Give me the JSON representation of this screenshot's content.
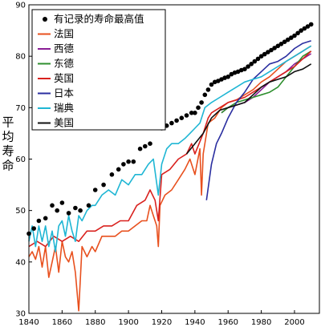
{
  "chart_data": {
    "type": "line",
    "title": "",
    "xlabel": "",
    "ylabel": "平均寿命",
    "xlim": [
      1840,
      2015
    ],
    "ylim": [
      30,
      90
    ],
    "xticks": [
      1840,
      1860,
      1880,
      1900,
      1920,
      1940,
      1960,
      1980,
      2000
    ],
    "yticks": [
      30,
      40,
      50,
      60,
      70,
      80,
      90
    ],
    "grid": false,
    "legend_position": "top-left",
    "record": {
      "name": "有记录的寿命最高值",
      "color": "#000000",
      "points": [
        [
          1840,
          45.5
        ],
        [
          1843,
          46.5
        ],
        [
          1846,
          48
        ],
        [
          1850,
          48.5
        ],
        [
          1854,
          51
        ],
        [
          1857,
          50
        ],
        [
          1860,
          51.5
        ],
        [
          1864,
          49.5
        ],
        [
          1868,
          50.5
        ],
        [
          1871,
          50
        ],
        [
          1876,
          51
        ],
        [
          1880,
          54
        ],
        [
          1885,
          55
        ],
        [
          1890,
          57
        ],
        [
          1894,
          58
        ],
        [
          1897,
          59
        ],
        [
          1900,
          59.5
        ],
        [
          1903,
          59.5
        ],
        [
          1907,
          62
        ],
        [
          1910,
          62.5
        ],
        [
          1913,
          63
        ],
        [
          1920,
          66
        ],
        [
          1923,
          66.5
        ],
        [
          1926,
          67
        ],
        [
          1929,
          67.5
        ],
        [
          1932,
          68
        ],
        [
          1935,
          68.5
        ],
        [
          1938,
          69
        ],
        [
          1940,
          69
        ],
        [
          1942,
          70
        ],
        [
          1944,
          71
        ],
        [
          1946,
          72.5
        ],
        [
          1948,
          73.5
        ],
        [
          1950,
          74.5
        ],
        [
          1952,
          75
        ],
        [
          1954,
          75.2
        ],
        [
          1956,
          75.5
        ],
        [
          1958,
          75.8
        ],
        [
          1960,
          76
        ],
        [
          1962,
          76.5
        ],
        [
          1964,
          76.8
        ],
        [
          1966,
          77
        ],
        [
          1968,
          77.3
        ],
        [
          1970,
          77.5
        ],
        [
          1972,
          78
        ],
        [
          1974,
          78.5
        ],
        [
          1976,
          79
        ],
        [
          1978,
          79.5
        ],
        [
          1980,
          80
        ],
        [
          1982,
          80.4
        ],
        [
          1984,
          80.8
        ],
        [
          1986,
          81.2
        ],
        [
          1988,
          81.6
        ],
        [
          1990,
          82
        ],
        [
          1992,
          82.4
        ],
        [
          1994,
          82.8
        ],
        [
          1996,
          83.2
        ],
        [
          1998,
          83.6
        ],
        [
          2000,
          84
        ],
        [
          2002,
          84.5
        ],
        [
          2004,
          85
        ],
        [
          2006,
          85.4
        ],
        [
          2008,
          85.8
        ],
        [
          2010,
          86.2
        ]
      ]
    },
    "series": [
      {
        "name": "法国",
        "color": "#e8501e",
        "points": [
          [
            1840,
            41
          ],
          [
            1842,
            42
          ],
          [
            1844,
            40.5
          ],
          [
            1846,
            43
          ],
          [
            1848,
            39
          ],
          [
            1850,
            43
          ],
          [
            1852,
            37
          ],
          [
            1854,
            40
          ],
          [
            1856,
            43
          ],
          [
            1858,
            38
          ],
          [
            1860,
            44
          ],
          [
            1862,
            41
          ],
          [
            1864,
            40
          ],
          [
            1866,
            42
          ],
          [
            1868,
            38
          ],
          [
            1870,
            30.5
          ],
          [
            1872,
            43
          ],
          [
            1875,
            41
          ],
          [
            1878,
            43
          ],
          [
            1880,
            42
          ],
          [
            1884,
            45
          ],
          [
            1888,
            45
          ],
          [
            1892,
            45
          ],
          [
            1896,
            46
          ],
          [
            1900,
            46
          ],
          [
            1904,
            47
          ],
          [
            1908,
            48
          ],
          [
            1911,
            48
          ],
          [
            1913,
            51
          ],
          [
            1915,
            49
          ],
          [
            1917,
            47
          ],
          [
            1918,
            43
          ],
          [
            1919,
            51
          ],
          [
            1922,
            53
          ],
          [
            1926,
            54
          ],
          [
            1930,
            56
          ],
          [
            1934,
            58
          ],
          [
            1937,
            60
          ],
          [
            1940,
            57
          ],
          [
            1943,
            62
          ],
          [
            1944,
            53
          ],
          [
            1945,
            61
          ],
          [
            1948,
            67
          ],
          [
            1952,
            68
          ],
          [
            1956,
            70
          ],
          [
            1960,
            71
          ],
          [
            1965,
            71.5
          ],
          [
            1970,
            72.5
          ],
          [
            1975,
            73.5
          ],
          [
            1980,
            75
          ],
          [
            1985,
            76
          ],
          [
            1990,
            77.5
          ],
          [
            1995,
            79
          ],
          [
            2000,
            80
          ],
          [
            2005,
            81
          ],
          [
            2010,
            82
          ]
        ]
      },
      {
        "name": "西德",
        "color": "#8a1d95",
        "points": [
          [
            1956,
            69
          ],
          [
            1960,
            70
          ],
          [
            1965,
            70.5
          ],
          [
            1970,
            71
          ],
          [
            1975,
            72
          ],
          [
            1980,
            73.5
          ],
          [
            1985,
            75
          ],
          [
            1990,
            76
          ],
          [
            1995,
            77
          ],
          [
            2000,
            78.5
          ],
          [
            2005,
            79.5
          ],
          [
            2010,
            80.5
          ]
        ]
      },
      {
        "name": "东德",
        "color": "#2f8f2f",
        "points": [
          [
            1956,
            69
          ],
          [
            1960,
            70
          ],
          [
            1965,
            71
          ],
          [
            1970,
            71.5
          ],
          [
            1975,
            72
          ],
          [
            1980,
            72.5
          ],
          [
            1985,
            73
          ],
          [
            1990,
            74
          ],
          [
            1995,
            76
          ],
          [
            2000,
            78
          ],
          [
            2005,
            80
          ],
          [
            2010,
            81
          ]
        ]
      },
      {
        "name": "英国",
        "color": "#d9211e",
        "points": [
          [
            1840,
            43
          ],
          [
            1845,
            44
          ],
          [
            1850,
            43
          ],
          [
            1855,
            45
          ],
          [
            1860,
            44
          ],
          [
            1865,
            45
          ],
          [
            1870,
            44
          ],
          [
            1875,
            46
          ],
          [
            1880,
            46
          ],
          [
            1885,
            47
          ],
          [
            1890,
            47
          ],
          [
            1895,
            48
          ],
          [
            1900,
            48
          ],
          [
            1905,
            51
          ],
          [
            1910,
            52
          ],
          [
            1913,
            54
          ],
          [
            1916,
            52
          ],
          [
            1918,
            48
          ],
          [
            1920,
            57
          ],
          [
            1925,
            58
          ],
          [
            1930,
            60
          ],
          [
            1935,
            61
          ],
          [
            1938,
            63
          ],
          [
            1940,
            61
          ],
          [
            1945,
            65
          ],
          [
            1948,
            68
          ],
          [
            1950,
            69
          ],
          [
            1955,
            70
          ],
          [
            1960,
            71
          ],
          [
            1965,
            71.5
          ],
          [
            1970,
            72
          ],
          [
            1975,
            73
          ],
          [
            1980,
            74
          ],
          [
            1985,
            75
          ],
          [
            1990,
            76
          ],
          [
            1995,
            77
          ],
          [
            2000,
            78
          ],
          [
            2005,
            79.5
          ],
          [
            2010,
            81
          ]
        ]
      },
      {
        "name": "日本",
        "color": "#2a2ea0",
        "points": [
          [
            1947,
            52
          ],
          [
            1950,
            59
          ],
          [
            1953,
            63
          ],
          [
            1956,
            65
          ],
          [
            1960,
            68
          ],
          [
            1965,
            71
          ],
          [
            1970,
            73
          ],
          [
            1975,
            75.5
          ],
          [
            1980,
            77
          ],
          [
            1985,
            78.5
          ],
          [
            1990,
            79
          ],
          [
            1995,
            80
          ],
          [
            2000,
            81.5
          ],
          [
            2005,
            82.5
          ],
          [
            2010,
            83
          ]
        ]
      },
      {
        "name": "瑞典",
        "color": "#1fb6d4",
        "points": [
          [
            1840,
            44
          ],
          [
            1842,
            47
          ],
          [
            1844,
            43
          ],
          [
            1846,
            47
          ],
          [
            1848,
            44
          ],
          [
            1850,
            47
          ],
          [
            1852,
            43
          ],
          [
            1854,
            46
          ],
          [
            1856,
            42
          ],
          [
            1858,
            47
          ],
          [
            1860,
            48
          ],
          [
            1862,
            45
          ],
          [
            1864,
            49
          ],
          [
            1866,
            46
          ],
          [
            1868,
            44
          ],
          [
            1870,
            49
          ],
          [
            1872,
            48
          ],
          [
            1875,
            50
          ],
          [
            1878,
            51
          ],
          [
            1880,
            51
          ],
          [
            1884,
            53
          ],
          [
            1888,
            54
          ],
          [
            1892,
            53
          ],
          [
            1896,
            56
          ],
          [
            1900,
            55
          ],
          [
            1904,
            57
          ],
          [
            1908,
            57
          ],
          [
            1912,
            59
          ],
          [
            1915,
            60
          ],
          [
            1918,
            53
          ],
          [
            1920,
            59
          ],
          [
            1923,
            62
          ],
          [
            1926,
            63
          ],
          [
            1930,
            63
          ],
          [
            1934,
            64
          ],
          [
            1937,
            65
          ],
          [
            1940,
            66
          ],
          [
            1943,
            67
          ],
          [
            1946,
            70
          ],
          [
            1950,
            71
          ],
          [
            1955,
            72
          ],
          [
            1960,
            73
          ],
          [
            1965,
            74
          ],
          [
            1970,
            75
          ],
          [
            1975,
            75.5
          ],
          [
            1980,
            76
          ],
          [
            1985,
            77
          ],
          [
            1990,
            78
          ],
          [
            1995,
            79
          ],
          [
            2000,
            80
          ],
          [
            2005,
            81
          ],
          [
            2010,
            82
          ]
        ]
      },
      {
        "name": "美国",
        "color": "#111111",
        "points": [
          [
            1935,
            61
          ],
          [
            1940,
            63
          ],
          [
            1945,
            65
          ],
          [
            1950,
            68
          ],
          [
            1955,
            69.5
          ],
          [
            1960,
            70
          ],
          [
            1965,
            70.5
          ],
          [
            1970,
            71
          ],
          [
            1975,
            72.5
          ],
          [
            1980,
            74
          ],
          [
            1985,
            75
          ],
          [
            1990,
            75.5
          ],
          [
            1995,
            76
          ],
          [
            2000,
            77
          ],
          [
            2005,
            77.5
          ],
          [
            2010,
            78.5
          ]
        ]
      }
    ]
  }
}
